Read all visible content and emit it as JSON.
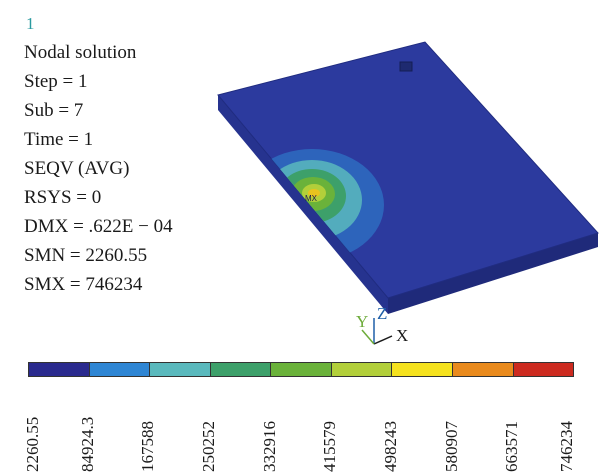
{
  "window_number": "1",
  "info": {
    "lines": [
      "Nodal solution",
      "Step = 1",
      "Sub = 7",
      "Time = 1",
      "SEQV (AVG)",
      "RSYS = 0",
      "DMX = .622E − 04",
      "SMN = 2260.55",
      "SMX = 746234"
    ]
  },
  "triad": {
    "y_label": "Y",
    "z_label": "Z",
    "x_label": "X"
  },
  "legend": {
    "colors": [
      "#2a2a8e",
      "#2f86d4",
      "#5ab9bd",
      "#3da06a",
      "#6ab23a",
      "#b2cf3a",
      "#f5e21e",
      "#e98a1d",
      "#cc2a1f"
    ],
    "ticks": [
      "2260.55",
      "84924.3",
      "167588",
      "250252",
      "332916",
      "415579",
      "498243",
      "580907",
      "663571",
      "746234"
    ]
  },
  "model": {
    "plate_color": "#2c3a9e",
    "plate_edge_color": "#202c80",
    "side_color": "#24318a"
  }
}
